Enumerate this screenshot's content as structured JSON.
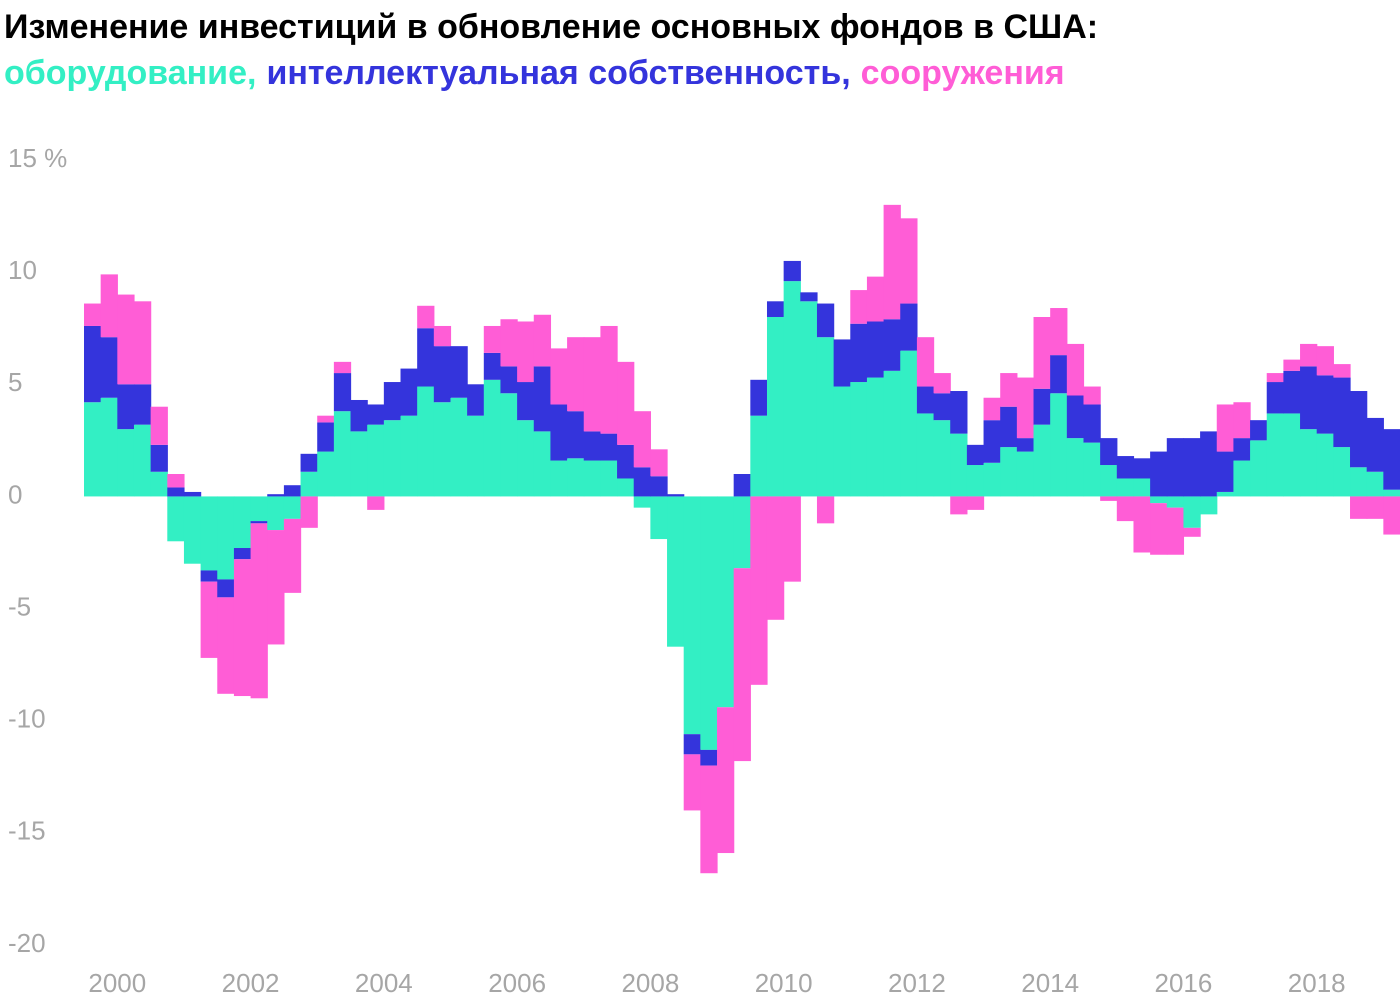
{
  "chart_data": {
    "type": "diverging-stacked-bar",
    "title": "Изменение инвестиций в обновление основных фондов в США:",
    "categories": [
      "2000",
      null,
      null,
      null,
      null,
      null,
      null,
      null,
      "2002",
      null,
      null,
      null,
      null,
      null,
      null,
      null,
      "2004",
      null,
      null,
      null,
      null,
      null,
      null,
      null,
      "2006",
      null,
      null,
      null,
      null,
      null,
      null,
      null,
      "2008",
      null,
      null,
      null,
      null,
      null,
      null,
      null,
      "2010",
      null,
      null,
      null,
      null,
      null,
      null,
      null,
      "2012",
      null,
      null,
      null,
      null,
      null,
      null,
      null,
      "2014",
      null,
      null,
      null,
      null,
      null,
      null,
      null,
      "2016",
      null,
      null,
      null,
      null,
      null,
      null,
      null,
      "2018",
      null,
      null,
      null,
      null,
      null,
      null
    ],
    "series": [
      {
        "name": "оборудование,",
        "color": "#33efc4",
        "values": [
          4.2,
          4.4,
          3.0,
          3.2,
          1.1,
          -2.0,
          -3.0,
          -3.3,
          -3.7,
          -2.3,
          -1.1,
          -1.5,
          -1.0,
          1.1,
          2.0,
          3.8,
          2.9,
          3.2,
          3.4,
          3.6,
          4.9,
          4.2,
          4.4,
          3.6,
          5.2,
          4.6,
          3.4,
          2.9,
          1.6,
          1.7,
          1.6,
          1.6,
          0.8,
          -0.5,
          -1.9,
          -6.7,
          -10.6,
          -11.3,
          -9.4,
          -3.2,
          3.6,
          8.0,
          9.6,
          8.7,
          7.1,
          4.9,
          5.1,
          5.3,
          5.6,
          6.5,
          3.7,
          3.4,
          2.8,
          1.4,
          1.5,
          2.2,
          2.0,
          3.2,
          4.6,
          2.6,
          2.4,
          1.4,
          0.8,
          0.8,
          -0.3,
          -0.5,
          -1.4,
          -0.8,
          0.2,
          1.6,
          2.5,
          3.7,
          3.7,
          3.0,
          2.8,
          2.2,
          1.3,
          1.1,
          0.3
        ]
      },
      {
        "name": "интеллектуальная собственность,",
        "color": "#3434dc",
        "values": [
          3.4,
          2.7,
          2.0,
          1.8,
          1.2,
          0.4,
          0.2,
          -0.5,
          -0.8,
          -0.5,
          -0.1,
          0.1,
          0.5,
          0.8,
          1.3,
          1.7,
          1.4,
          0.9,
          1.7,
          2.1,
          2.6,
          2.5,
          2.3,
          1.4,
          1.2,
          1.2,
          1.7,
          2.9,
          2.5,
          2.1,
          1.3,
          1.2,
          1.5,
          1.3,
          0.9,
          0.1,
          -0.9,
          -0.7,
          0,
          1.0,
          1.6,
          0.7,
          0.9,
          0.4,
          1.5,
          2.1,
          2.6,
          2.5,
          2.3,
          2.1,
          1.2,
          1.2,
          1.9,
          0.9,
          1.9,
          1.8,
          0.6,
          1.6,
          1.7,
          1.9,
          1.7,
          1.2,
          1.0,
          0.9,
          2.0,
          2.6,
          2.6,
          2.9,
          1.8,
          1.0,
          0.9,
          1.4,
          1.9,
          2.8,
          2.6,
          3.1,
          3.4,
          2.4,
          2.7
        ]
      },
      {
        "name": "сооружения",
        "color": "#ff5dd6",
        "values": [
          1.0,
          2.8,
          4.0,
          3.7,
          1.7,
          0.6,
          0,
          -3.4,
          -4.3,
          -6.1,
          -7.8,
          -5.1,
          -3.3,
          -1.4,
          0.3,
          0.5,
          0,
          -0.6,
          0,
          0,
          1.0,
          0.9,
          0,
          0,
          1.2,
          2.1,
          2.7,
          2.3,
          2.5,
          3.3,
          4.2,
          4.8,
          3.7,
          2.5,
          1.2,
          0,
          -2.5,
          -4.8,
          -6.5,
          -8.6,
          -8.4,
          -5.5,
          -3.8,
          0,
          -1.2,
          0,
          1.5,
          2.0,
          5.1,
          3.8,
          2.2,
          0.9,
          -0.8,
          -0.6,
          1.0,
          1.5,
          2.7,
          3.2,
          2.1,
          2.3,
          0.8,
          -0.2,
          -1.1,
          -2.5,
          -2.3,
          -2.1,
          -0.4,
          0,
          2.1,
          1.6,
          0,
          0.4,
          0.5,
          1.0,
          1.3,
          0.6,
          -1.0,
          -1.0,
          -1.7
        ]
      }
    ],
    "ylim": [
      -20,
      15
    ],
    "yticks": [
      -20,
      -15,
      -10,
      -5,
      0,
      5,
      10,
      {
        "value": 15,
        "label": "15 %"
      }
    ],
    "grid": false
  }
}
